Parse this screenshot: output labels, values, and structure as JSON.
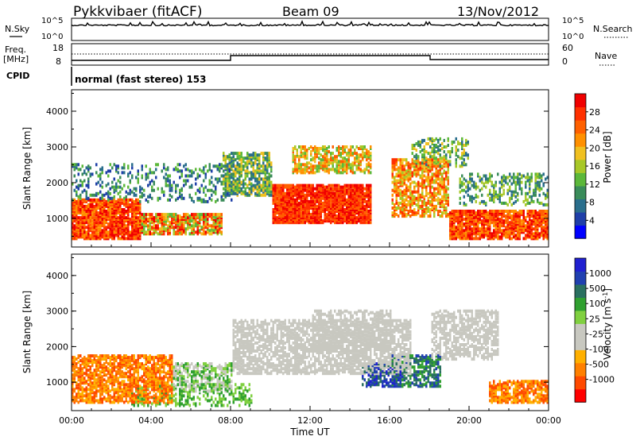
{
  "header": {
    "station": "Pykkvibaer (fitACF)",
    "beam": "Beam 09",
    "date": "13/Nov/2012"
  },
  "top_panels": {
    "nsky_label": "N.Sky",
    "nsky_ticks": [
      "10^5",
      "10^0"
    ],
    "nsearch_ticks": [
      "10^5",
      "10^0"
    ],
    "nsearch_label": "N.Search",
    "freq_label": "Freq.",
    "freq_unit": "[MHz]",
    "freq_ticks": [
      "18",
      "8"
    ],
    "nave_ticks": [
      "60",
      "0"
    ],
    "nave_label": "Nave",
    "cpid_label": "CPID",
    "cpid_text": "normal (fast stereo) 153"
  },
  "colors": {
    "power": [
      "#0000ff",
      "#1f3fa8",
      "#2a6e8c",
      "#3a8c5a",
      "#5cb83a",
      "#a8c828",
      "#f0c020",
      "#ff9000",
      "#ff6000",
      "#ff3000",
      "#f00000"
    ],
    "velocity": [
      "#ff0000",
      "#ff4a00",
      "#ff8000",
      "#ffb000",
      "#c8c8c0",
      "#c8c8c0",
      "#80d040",
      "#30a030",
      "#2a7060",
      "#2040b0",
      "#2020d0"
    ],
    "ground_scatter": "#c8c8c0"
  },
  "chart_data": [
    {
      "type": "heatmap",
      "name": "Power",
      "ylabel": "Slant Range [km]",
      "yticks": [
        "1000",
        "2000",
        "3000",
        "4000"
      ],
      "ylim": [
        200,
        4600
      ],
      "xlim": [
        0,
        24
      ],
      "colorbar_label": "Power [dB]",
      "colorbar_ticks": [
        "4",
        "8",
        "12",
        "16",
        "20",
        "24",
        "28"
      ]
    },
    {
      "type": "heatmap",
      "name": "Velocity",
      "ylabel": "Slant Range [km]",
      "yticks": [
        "1000",
        "2000",
        "3000",
        "4000"
      ],
      "ylim": [
        200,
        4600
      ],
      "xlim": [
        0,
        24
      ],
      "colorbar_label": "Velocity [m s",
      "colorbar_label_sup": "-1",
      "colorbar_label_end": "]",
      "colorbar_ticks": [
        "1000",
        "500",
        "100",
        "25",
        "-25",
        "-100",
        "-500",
        "-1000"
      ]
    }
  ],
  "x_axis": {
    "ticks": [
      "00:00",
      "04:00",
      "08:00",
      "12:00",
      "16:00",
      "20:00",
      "00:00"
    ],
    "label": "Time UT"
  }
}
